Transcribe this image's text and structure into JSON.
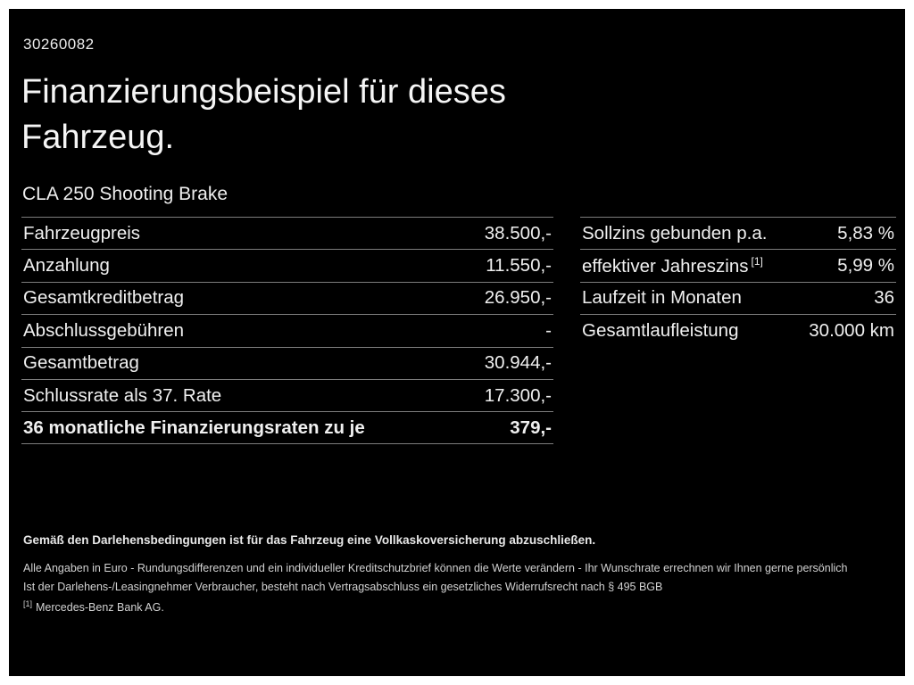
{
  "page": {
    "id_number": "30260082",
    "title_line1": "Finanzierungsbeispiel für dieses",
    "title_line2": "Fahrzeug.",
    "vehicle_model": "CLA 250 Shooting Brake"
  },
  "left_table": {
    "rows": [
      {
        "label": "Fahrzeugpreis",
        "value": "38.500,-"
      },
      {
        "label": "Anzahlung",
        "value": "11.550,-"
      },
      {
        "label": "Gesamtkreditbetrag",
        "value": "26.950,-"
      },
      {
        "label": "Abschlussgebühren",
        "value": "-"
      },
      {
        "label": "Gesamtbetrag",
        "value": "30.944,-"
      },
      {
        "label": "Schlussrate als 37. Rate",
        "value": "17.300,-"
      },
      {
        "label": "36 monatliche Finanzierungsraten zu je",
        "value": "379,-"
      }
    ]
  },
  "right_table": {
    "rows": [
      {
        "label": "Sollzins gebunden p.a.",
        "footnote": "",
        "value": "5,83 %"
      },
      {
        "label": "effektiver Jahreszins",
        "footnote": "[1]",
        "value": "5,99 %"
      },
      {
        "label": "Laufzeit in Monaten",
        "footnote": "",
        "value": "36"
      },
      {
        "label": "Gesamtlaufleistung",
        "footnote": "",
        "value": "30.000 km"
      }
    ]
  },
  "footer": {
    "bold_note": "Gemäß den Darlehensbedingungen ist für das Fahrzeug eine Vollkaskoversicherung abzuschließen.",
    "note1": "Alle Angaben in Euro - Rundungsdifferenzen und ein individueller Kreditschutzbrief können die Werte verändern - Ihr Wunschrate errechnen wir Ihnen gerne persönlich",
    "note2": "Ist der Darlehens-/Leasingnehmer Verbraucher, besteht nach Vertragsabschluss ein gesetzliches Widerrufsrecht nach § 495 BGB",
    "footnote_marker": "[1]",
    "footnote_text": "Mercedes-Benz Bank AG."
  },
  "colors": {
    "background": "#000000",
    "text": "#f2f2f2",
    "divider": "#7d7d7d"
  }
}
